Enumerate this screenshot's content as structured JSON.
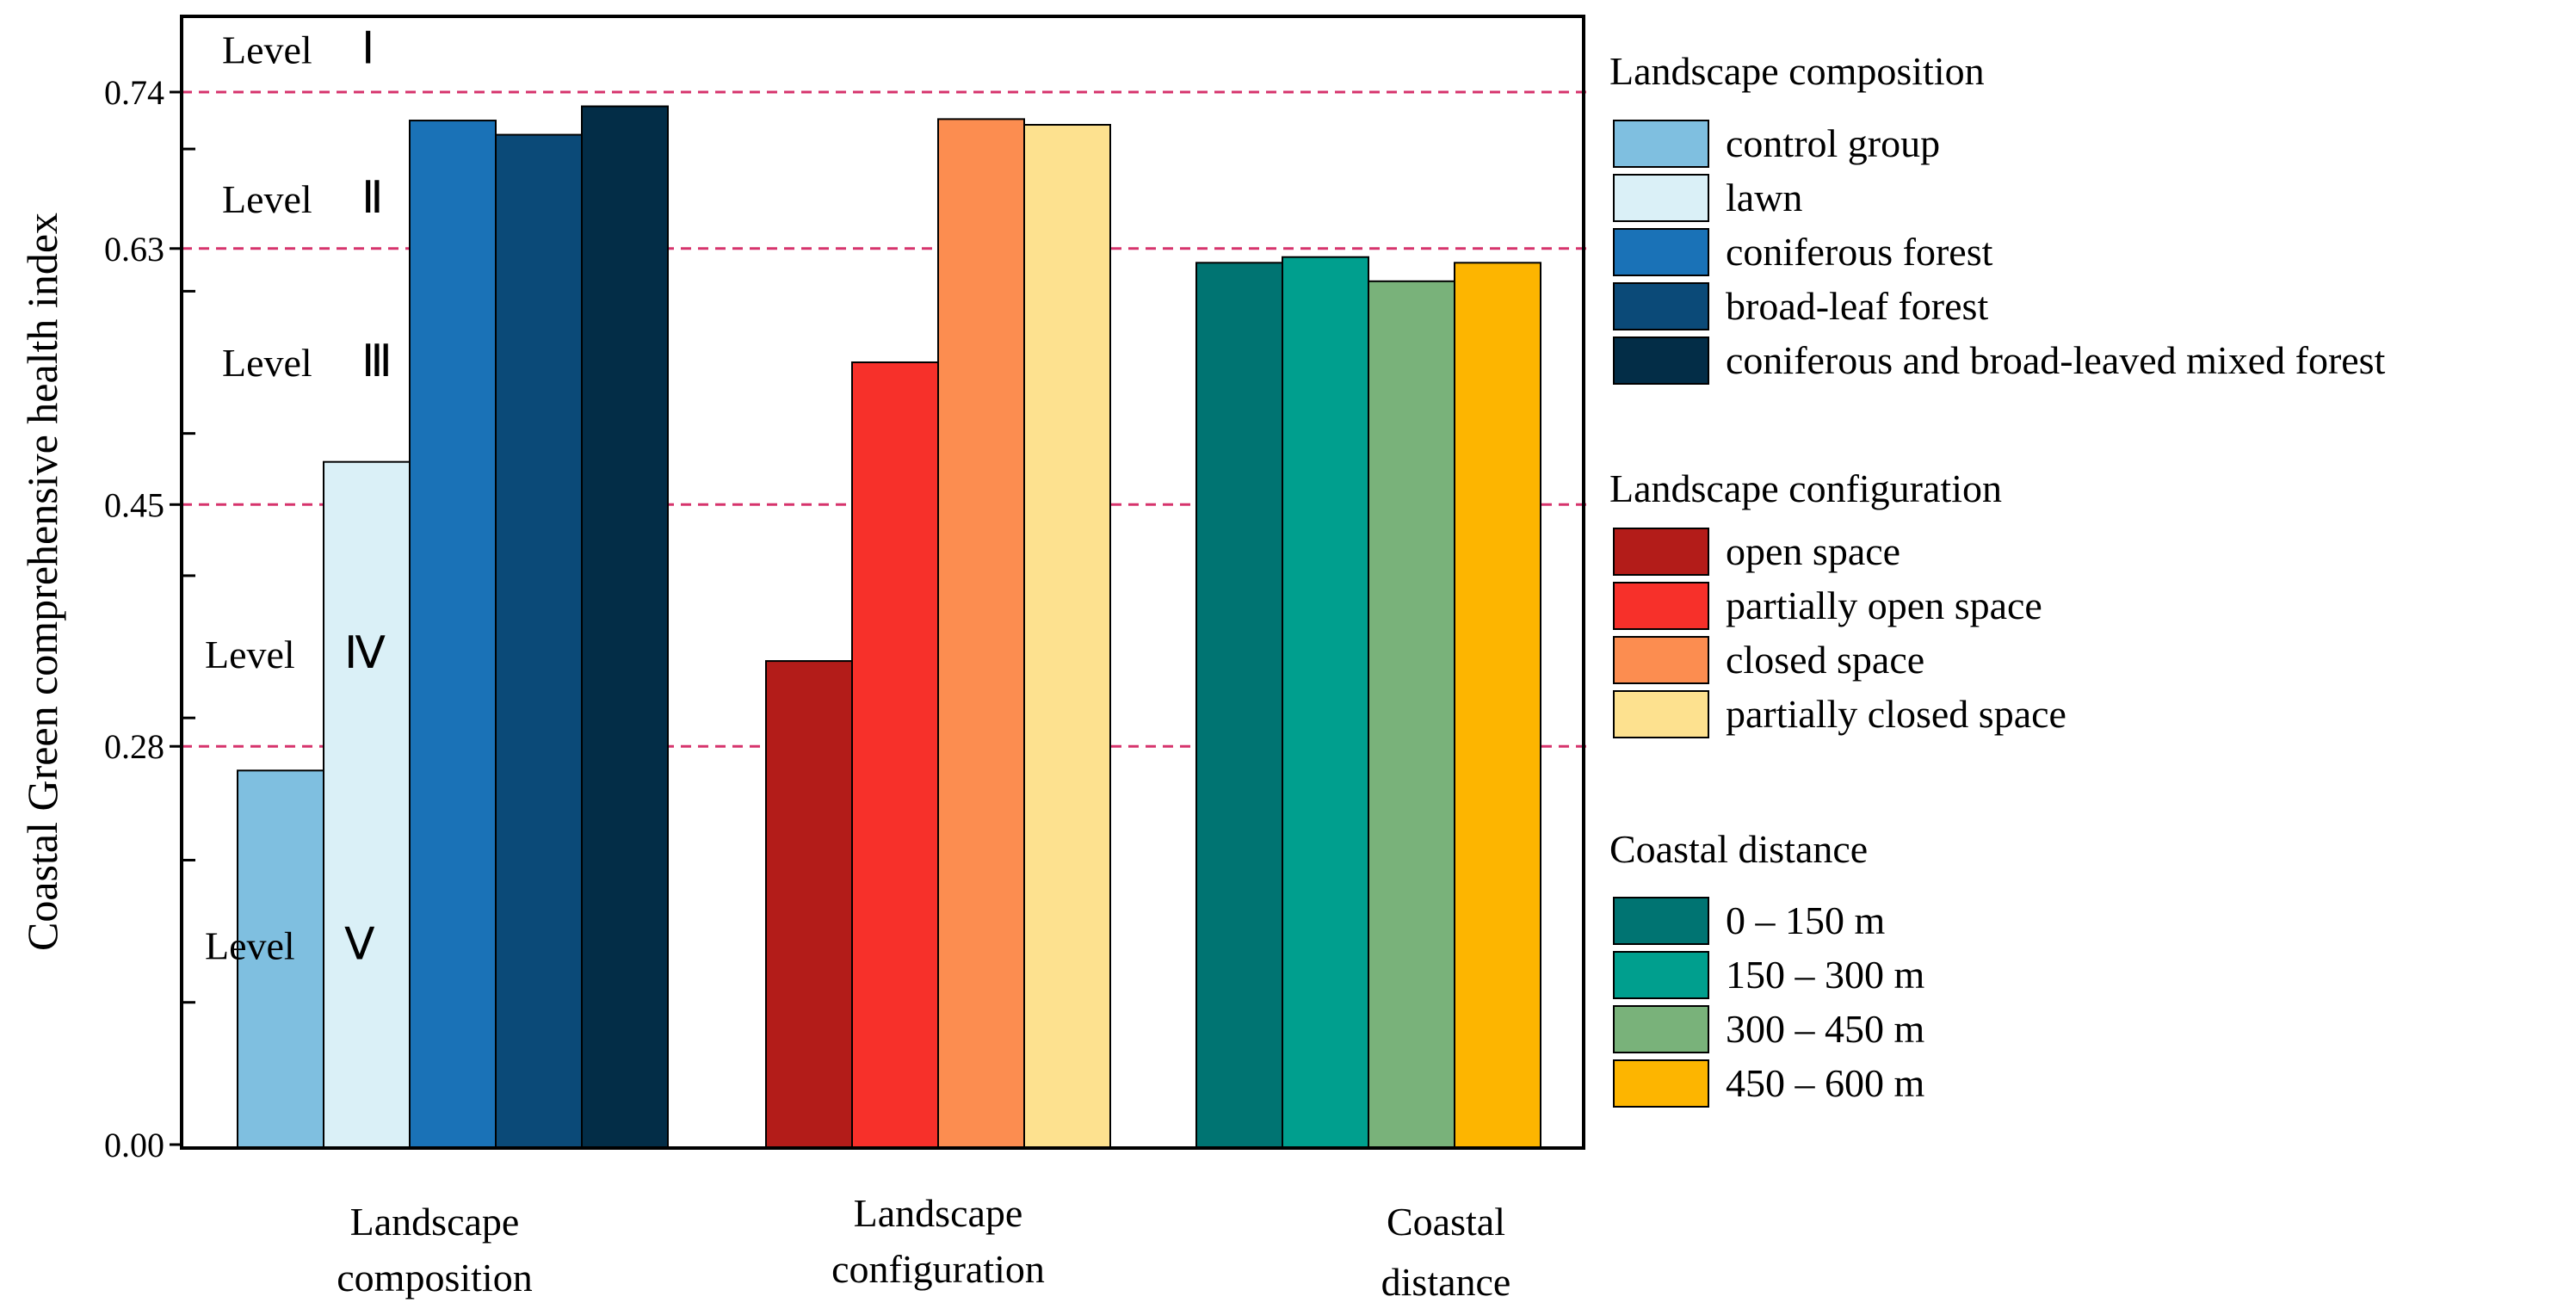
{
  "chart_data": {
    "type": "bar",
    "ylabel": "Coastal Green comprehensive health index",
    "ylim": [
      0,
      0.8
    ],
    "yticks": [
      "0.00",
      "0.28",
      "0.45",
      "0.63",
      "0.74"
    ],
    "ytick_values": [
      0,
      0.28,
      0.45,
      0.63,
      0.74
    ],
    "minor_ticks": [
      0.1,
      0.2,
      0.3,
      0.4,
      0.5,
      0.6,
      0.7
    ],
    "thresholds": [
      0.28,
      0.45,
      0.63,
      0.74
    ],
    "threshold_color": "#d6336c",
    "levels": [
      {
        "word": "Level",
        "num": "Ⅰ",
        "y": 0.77
      },
      {
        "word": "Level",
        "num": "Ⅱ",
        "y": 0.665
      },
      {
        "word": "Level",
        "num": "Ⅲ",
        "y": 0.55
      },
      {
        "word": "Level",
        "num": "Ⅳ",
        "y": 0.345
      },
      {
        "word": "Level",
        "num": "Ⅴ",
        "y": 0.14
      }
    ],
    "groups": [
      {
        "label_lines": [
          "Landscape",
          "composition"
        ],
        "legend_title": "Landscape composition",
        "series": [
          {
            "name": "control group",
            "value": 0.263,
            "color": "#7fbfe0"
          },
          {
            "name": "lawn",
            "value": 0.48,
            "color": "#daf0f7"
          },
          {
            "name": "coniferous forest",
            "value": 0.72,
            "color": "#1a72b7"
          },
          {
            "name": "broad-leaf forest",
            "value": 0.71,
            "color": "#0b4a78"
          },
          {
            "name": "coniferous and broad-leaved mixed forest",
            "value": 0.73,
            "color": "#032d47"
          }
        ]
      },
      {
        "label_lines": [
          "Landscape",
          "configuration"
        ],
        "legend_title": "Landscape configuration",
        "series": [
          {
            "name": "open space",
            "value": 0.34,
            "color": "#b31c19"
          },
          {
            "name": "partially open space",
            "value": 0.55,
            "color": "#f7302a"
          },
          {
            "name": "closed space",
            "value": 0.721,
            "color": "#fc8d50"
          },
          {
            "name": "partially closed space",
            "value": 0.717,
            "color": "#fde18f"
          }
        ]
      },
      {
        "label_lines": [
          "Coastal",
          "distance"
        ],
        "legend_title": "Coastal distance",
        "series": [
          {
            "name": "0 – 150 m",
            "value": 0.62,
            "color": "#007472"
          },
          {
            "name": "150 – 300 m",
            "value": 0.624,
            "color": "#009f8e"
          },
          {
            "name": "300 – 450 m",
            "value": 0.607,
            "color": "#79b27a"
          },
          {
            "name": "450 – 600 m",
            "value": 0.62,
            "color": "#fdb500"
          }
        ]
      }
    ]
  }
}
